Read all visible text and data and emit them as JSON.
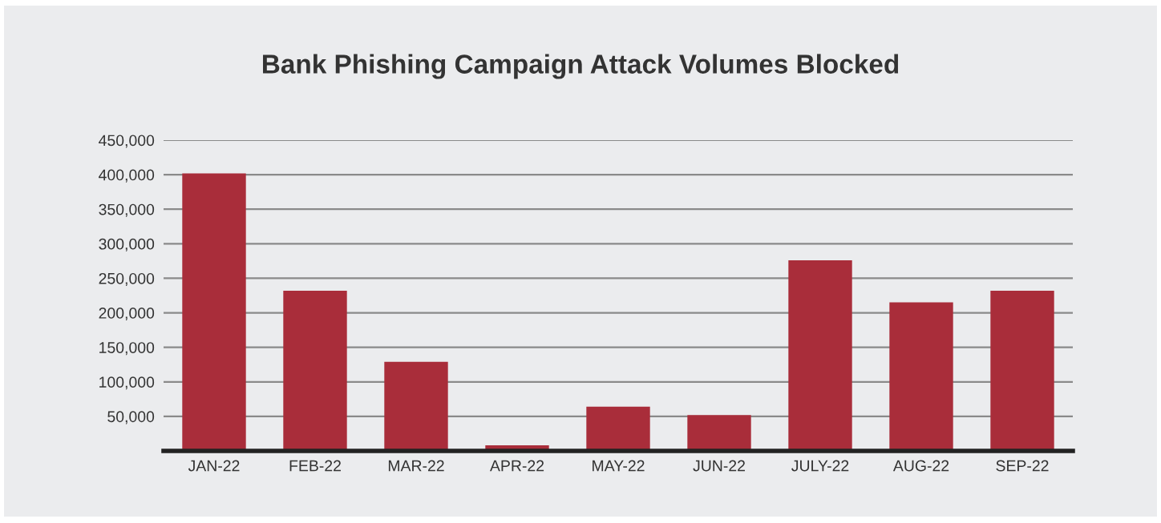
{
  "chart_data": {
    "type": "bar",
    "title": "Bank Phishing Campaign Attack Volumes Blocked",
    "categories": [
      "JAN-22",
      "FEB-22",
      "MAR-22",
      "APR-22",
      "MAY-22",
      "JUN-22",
      "JULY-22",
      "AUG-22",
      "SEP-22"
    ],
    "values": [
      402000,
      232000,
      129000,
      8000,
      64000,
      52000,
      276000,
      215000,
      232000
    ],
    "color": "#a92d3a",
    "ylim": [
      0,
      450000
    ],
    "yticks": [
      {
        "value": 50000,
        "label": "50,000"
      },
      {
        "value": 100000,
        "label": "100,000"
      },
      {
        "value": 150000,
        "label": "150,000"
      },
      {
        "value": 200000,
        "label": "200,000"
      },
      {
        "value": 250000,
        "label": "250,000"
      },
      {
        "value": 300000,
        "label": "300,000"
      },
      {
        "value": 350000,
        "label": "350,000"
      },
      {
        "value": 400000,
        "label": "400,000"
      },
      {
        "value": 450000,
        "label": "450,000"
      }
    ],
    "grid": "y"
  }
}
